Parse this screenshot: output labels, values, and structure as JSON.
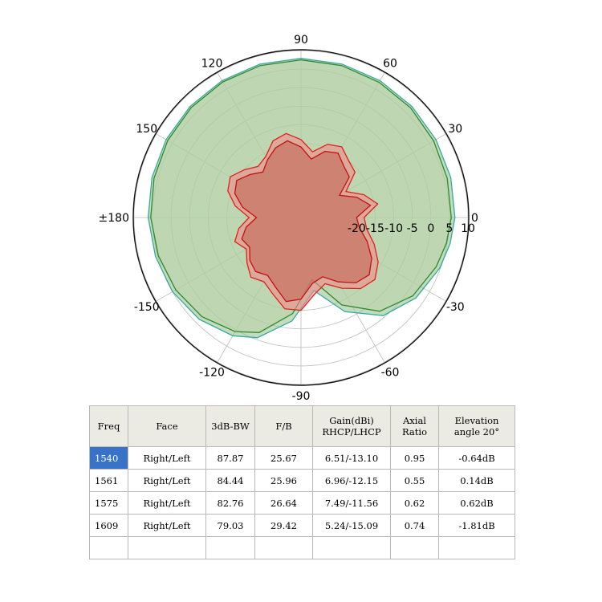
{
  "chart_data": [
    {
      "type": "polar",
      "title": "",
      "angle_labels": [
        "0",
        "30",
        "60",
        "90",
        "120",
        "150",
        "±180",
        "-150",
        "-120",
        "-90",
        "-60",
        "-30"
      ],
      "radial_labels": [
        "-20",
        "-15",
        "-10",
        "-5",
        "0",
        "5",
        "10"
      ],
      "radial_range": [
        -35,
        10
      ],
      "grid": true,
      "series": [
        {
          "color": "#3aa8a0",
          "fill": "#8fc08a",
          "points_deg": [
            0,
            15,
            30,
            45,
            60,
            75,
            90,
            105,
            120,
            135,
            150,
            165,
            180,
            195,
            210,
            225,
            240,
            250,
            265,
            280,
            295,
            310,
            325,
            340,
            350
          ],
          "values_db": [
            6.5,
            6.8,
            7.0,
            7.3,
            7.6,
            7.8,
            7.9,
            7.8,
            7.6,
            7.3,
            7.0,
            6.6,
            6.2,
            5.6,
            5.0,
            3.8,
            1.8,
            -0.5,
            -7.0,
            -15.0,
            -7.0,
            -0.5,
            2.8,
            4.8,
            5.8
          ]
        },
        {
          "color": "#2d8a2d",
          "fill": "#bcd3a8",
          "points_deg": [
            0,
            15,
            30,
            45,
            60,
            75,
            90,
            105,
            120,
            135,
            150,
            165,
            180,
            195,
            210,
            225,
            240,
            250,
            265,
            280,
            295,
            310,
            325,
            340,
            350
          ],
          "values_db": [
            5.5,
            5.8,
            6.3,
            6.8,
            7.1,
            7.4,
            7.5,
            7.4,
            7.2,
            6.9,
            6.5,
            6.0,
            5.5,
            4.8,
            4.0,
            2.8,
            0.5,
            -2.0,
            -9.0,
            -18.0,
            -9.0,
            -2.0,
            1.8,
            3.8,
            4.8
          ]
        },
        {
          "color": "#e0201c",
          "fill": "#f08a8a",
          "points_deg": [
            0,
            10,
            20,
            30,
            40,
            50,
            60,
            70,
            80,
            90,
            100,
            110,
            120,
            130,
            140,
            150,
            160,
            170,
            180,
            190,
            200,
            210,
            220,
            230,
            240,
            250,
            260,
            270,
            280,
            290,
            300,
            310,
            320,
            330,
            340,
            350
          ],
          "values_db": [
            -18,
            -14,
            -17,
            -21,
            -16,
            -15,
            -13,
            -14,
            -17,
            -14,
            -12,
            -13,
            -16,
            -17,
            -15,
            -13,
            -14,
            -17,
            -21,
            -18,
            -16,
            -18,
            -16,
            -14,
            -15,
            -13,
            -10,
            -10,
            -14,
            -16,
            -13,
            -10,
            -9,
            -11,
            -14,
            -17
          ]
        },
        {
          "color": "#c41010",
          "fill": "#c46a58",
          "points_deg": [
            0,
            10,
            20,
            30,
            40,
            50,
            60,
            70,
            80,
            90,
            100,
            110,
            120,
            130,
            140,
            150,
            160,
            170,
            180,
            190,
            200,
            210,
            220,
            230,
            240,
            250,
            260,
            270,
            280,
            290,
            300,
            310,
            320,
            330,
            340,
            350
          ],
          "values_db": [
            -20,
            -16,
            -19,
            -23,
            -18,
            -17,
            -15,
            -16,
            -19,
            -16,
            -14,
            -15,
            -17,
            -19,
            -17,
            -15,
            -16,
            -19,
            -23,
            -20,
            -18,
            -19,
            -17,
            -16,
            -17,
            -15,
            -12,
            -13,
            -17,
            -18,
            -15,
            -12,
            -11,
            -13,
            -16,
            -19
          ]
        }
      ]
    },
    {
      "type": "table",
      "columns": [
        [
          "Freq"
        ],
        [
          "Face"
        ],
        [
          "3dB-BW"
        ],
        [
          "F/B"
        ],
        [
          "Gain(dBi)",
          "RHCP/LHCP"
        ],
        [
          "Axial",
          "Ratio"
        ],
        [
          "Elevation",
          "angle 20°"
        ]
      ],
      "rows": [
        [
          "1540",
          "Right/Left",
          "87.87",
          "25.67",
          "6.51/-13.10",
          "0.95",
          "-0.64dB"
        ],
        [
          "1561",
          "Right/Left",
          "84.44",
          "25.96",
          "6.96/-12.15",
          "0.55",
          "0.14dB"
        ],
        [
          "1575",
          "Right/Left",
          "82.76",
          "26.64",
          "7.49/-11.56",
          "0.62",
          "0.62dB"
        ],
        [
          "1609",
          "Right/Left",
          "79.03",
          "29.42",
          "5.24/-15.09",
          "0.74",
          "-1.81dB"
        ],
        [
          "",
          "",
          "",
          "",
          "",
          "",
          ""
        ]
      ],
      "selected_cell": "1540"
    }
  ]
}
